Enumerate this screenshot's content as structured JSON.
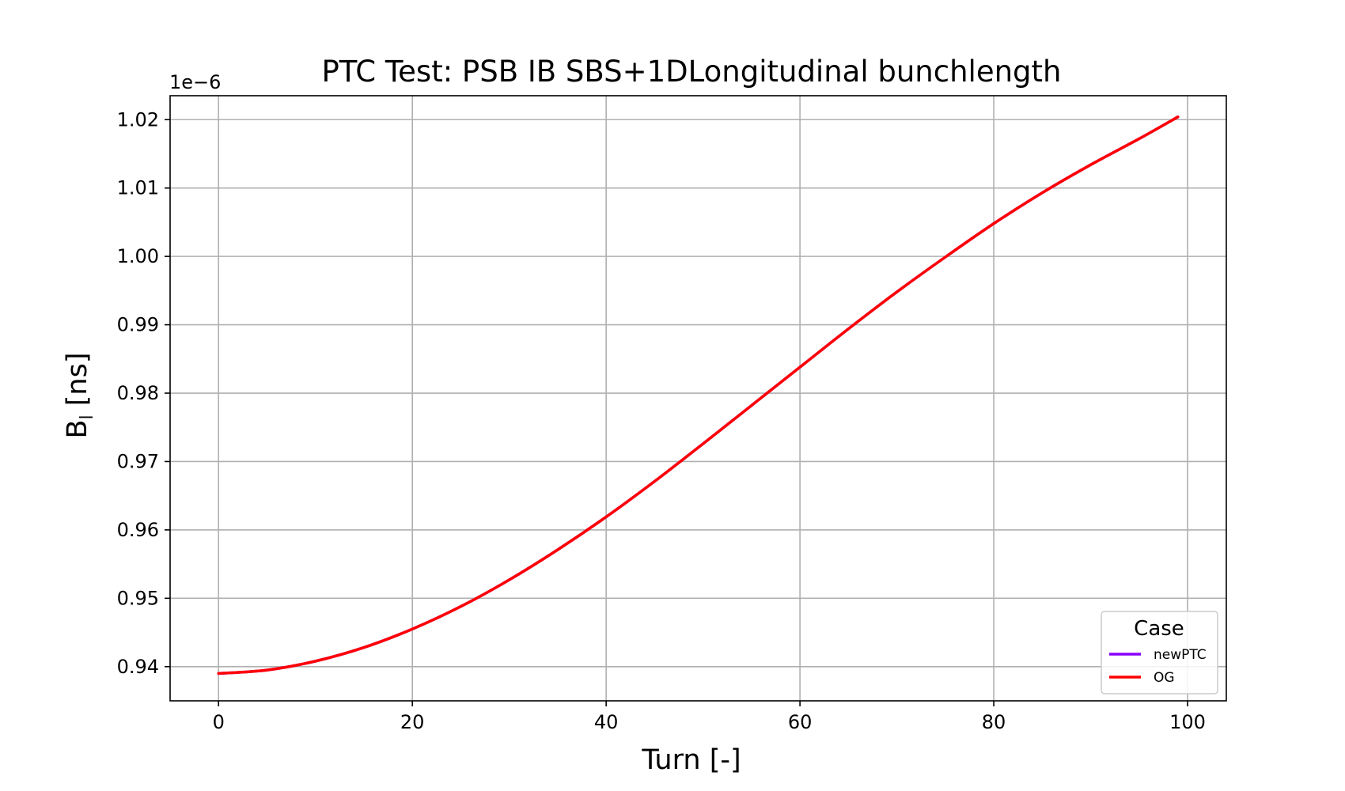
{
  "chart_data": {
    "type": "line",
    "title": "PTC Test: PSB IB SBS+1DLongitudinal bunchlength",
    "xlabel": "Turn [-]",
    "ylabel": "B",
    "ylabel_sub": "l",
    "ylabel_unit": " [ns]",
    "y_offset_text": "1e−6",
    "xlim": [
      -5,
      104
    ],
    "ylim": [
      0.935,
      1.0235
    ],
    "x_ticks": [
      0,
      20,
      40,
      60,
      80,
      100
    ],
    "x_tick_labels": [
      "0",
      "20",
      "40",
      "60",
      "80",
      "100"
    ],
    "y_ticks": [
      0.94,
      0.95,
      0.96,
      0.97,
      0.98,
      0.99,
      1.0,
      1.01,
      1.02
    ],
    "y_tick_labels": [
      "0.94",
      "0.95",
      "0.96",
      "0.97",
      "0.98",
      "0.99",
      "1.00",
      "1.01",
      "1.02"
    ],
    "grid": true,
    "legend": {
      "title": "Case",
      "placement": "lower-right"
    },
    "x": [
      0,
      5,
      10,
      15,
      20,
      25,
      30,
      35,
      40,
      45,
      50,
      55,
      60,
      65,
      70,
      75,
      80,
      85,
      90,
      95,
      99
    ],
    "series": [
      {
        "name": "newPTC",
        "color": "#8b00ff",
        "values": [
          0.939,
          0.9395,
          0.9408,
          0.9428,
          0.9455,
          0.9488,
          0.9527,
          0.9571,
          0.9619,
          0.9671,
          0.9726,
          0.9782,
          0.9838,
          0.9894,
          0.9948,
          0.9999,
          1.0048,
          1.0093,
          1.0134,
          1.0172,
          1.0204
        ]
      },
      {
        "name": "OG",
        "color": "#ff0000",
        "values": [
          0.939,
          0.9395,
          0.9408,
          0.9428,
          0.9455,
          0.9488,
          0.9527,
          0.9571,
          0.9619,
          0.9671,
          0.9726,
          0.9782,
          0.9838,
          0.9894,
          0.9948,
          0.9999,
          1.0048,
          1.0093,
          1.0134,
          1.0172,
          1.0204
        ]
      }
    ]
  }
}
